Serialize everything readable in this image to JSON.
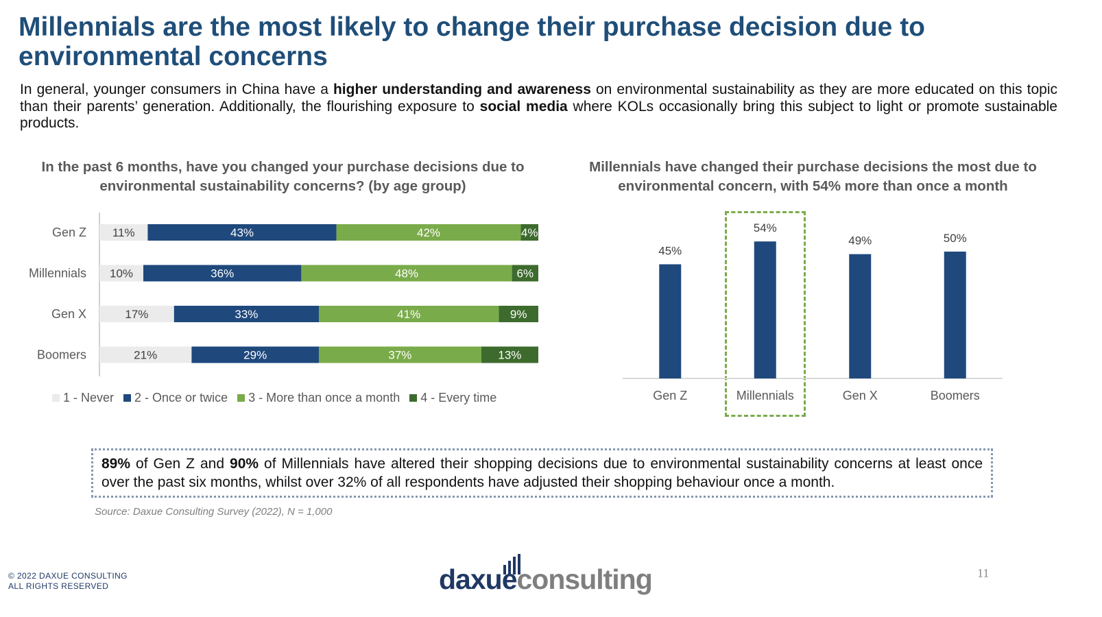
{
  "slide": {
    "title": "Millennials are the most likely to change their purchase decision due to environmental concerns",
    "intro": {
      "p1": "In general, younger consumers in China have a ",
      "b1": "higher understanding and awareness",
      "p2": " on environmental sustainability as they are more educated on this topic than their parents’ generation. Additionally, the flourishing exposure to ",
      "b2": "social media",
      "p3": " where KOLs occasionally bring this subject to light or promote sustainable products."
    },
    "callout": {
      "b1": "89%",
      "t1": " of Gen Z and ",
      "b2": "90%",
      "t2": " of Millennials have altered their shopping decisions due to environmental sustainability concerns at least once over the past six months, whilst over 32% of all respondents have adjusted their shopping behaviour once a month."
    },
    "source": "Source: Daxue Consulting Survey (2022), N = 1,000",
    "copyright_line1": "© 2022 DAXUE CONSULTING",
    "copyright_line2": "ALL RIGHTS RESERVED",
    "logo": {
      "text_dark": "daxue",
      "text_gray": "consulting"
    },
    "page_number": "11"
  },
  "colors": {
    "title": "#1f4e79",
    "never": "#ebebeb",
    "once_twice": "#1f497d",
    "more_than_once": "#7aab4a",
    "every_time": "#3d6b2d",
    "highlight": "#7aab4a",
    "logo_dark": "#1f3864",
    "logo_gray": "#7f7f7f"
  },
  "chart_data": [
    {
      "type": "bar",
      "orientation": "horizontal",
      "stacked": true,
      "title": "In the past 6 months, have you changed your purchase decisions due to environmental sustainability concerns? (by age group)",
      "categories": [
        "Gen Z",
        "Millennials",
        "Gen X",
        "Boomers"
      ],
      "series": [
        {
          "name": "1 - Never",
          "color": "#ebebeb",
          "values": [
            11,
            10,
            17,
            21
          ]
        },
        {
          "name": "2 - Once or twice",
          "color": "#1f497d",
          "values": [
            43,
            36,
            33,
            29
          ]
        },
        {
          "name": "3 - More than once a month",
          "color": "#7aab4a",
          "values": [
            42,
            48,
            41,
            37
          ]
        },
        {
          "name": "4 - Every time",
          "color": "#3d6b2d",
          "values": [
            4,
            6,
            9,
            13
          ]
        }
      ],
      "unit": "%",
      "legend": "bottom"
    },
    {
      "type": "bar",
      "orientation": "vertical",
      "title": "Millennials have changed their purchase decisions the most due to environmental concern, with 54% more than once a month",
      "categories": [
        "Gen Z",
        "Millennials",
        "Gen X",
        "Boomers"
      ],
      "values": [
        45,
        54,
        49,
        50
      ],
      "unit": "%",
      "highlight": "Millennials",
      "ylim": [
        0,
        60
      ]
    }
  ]
}
